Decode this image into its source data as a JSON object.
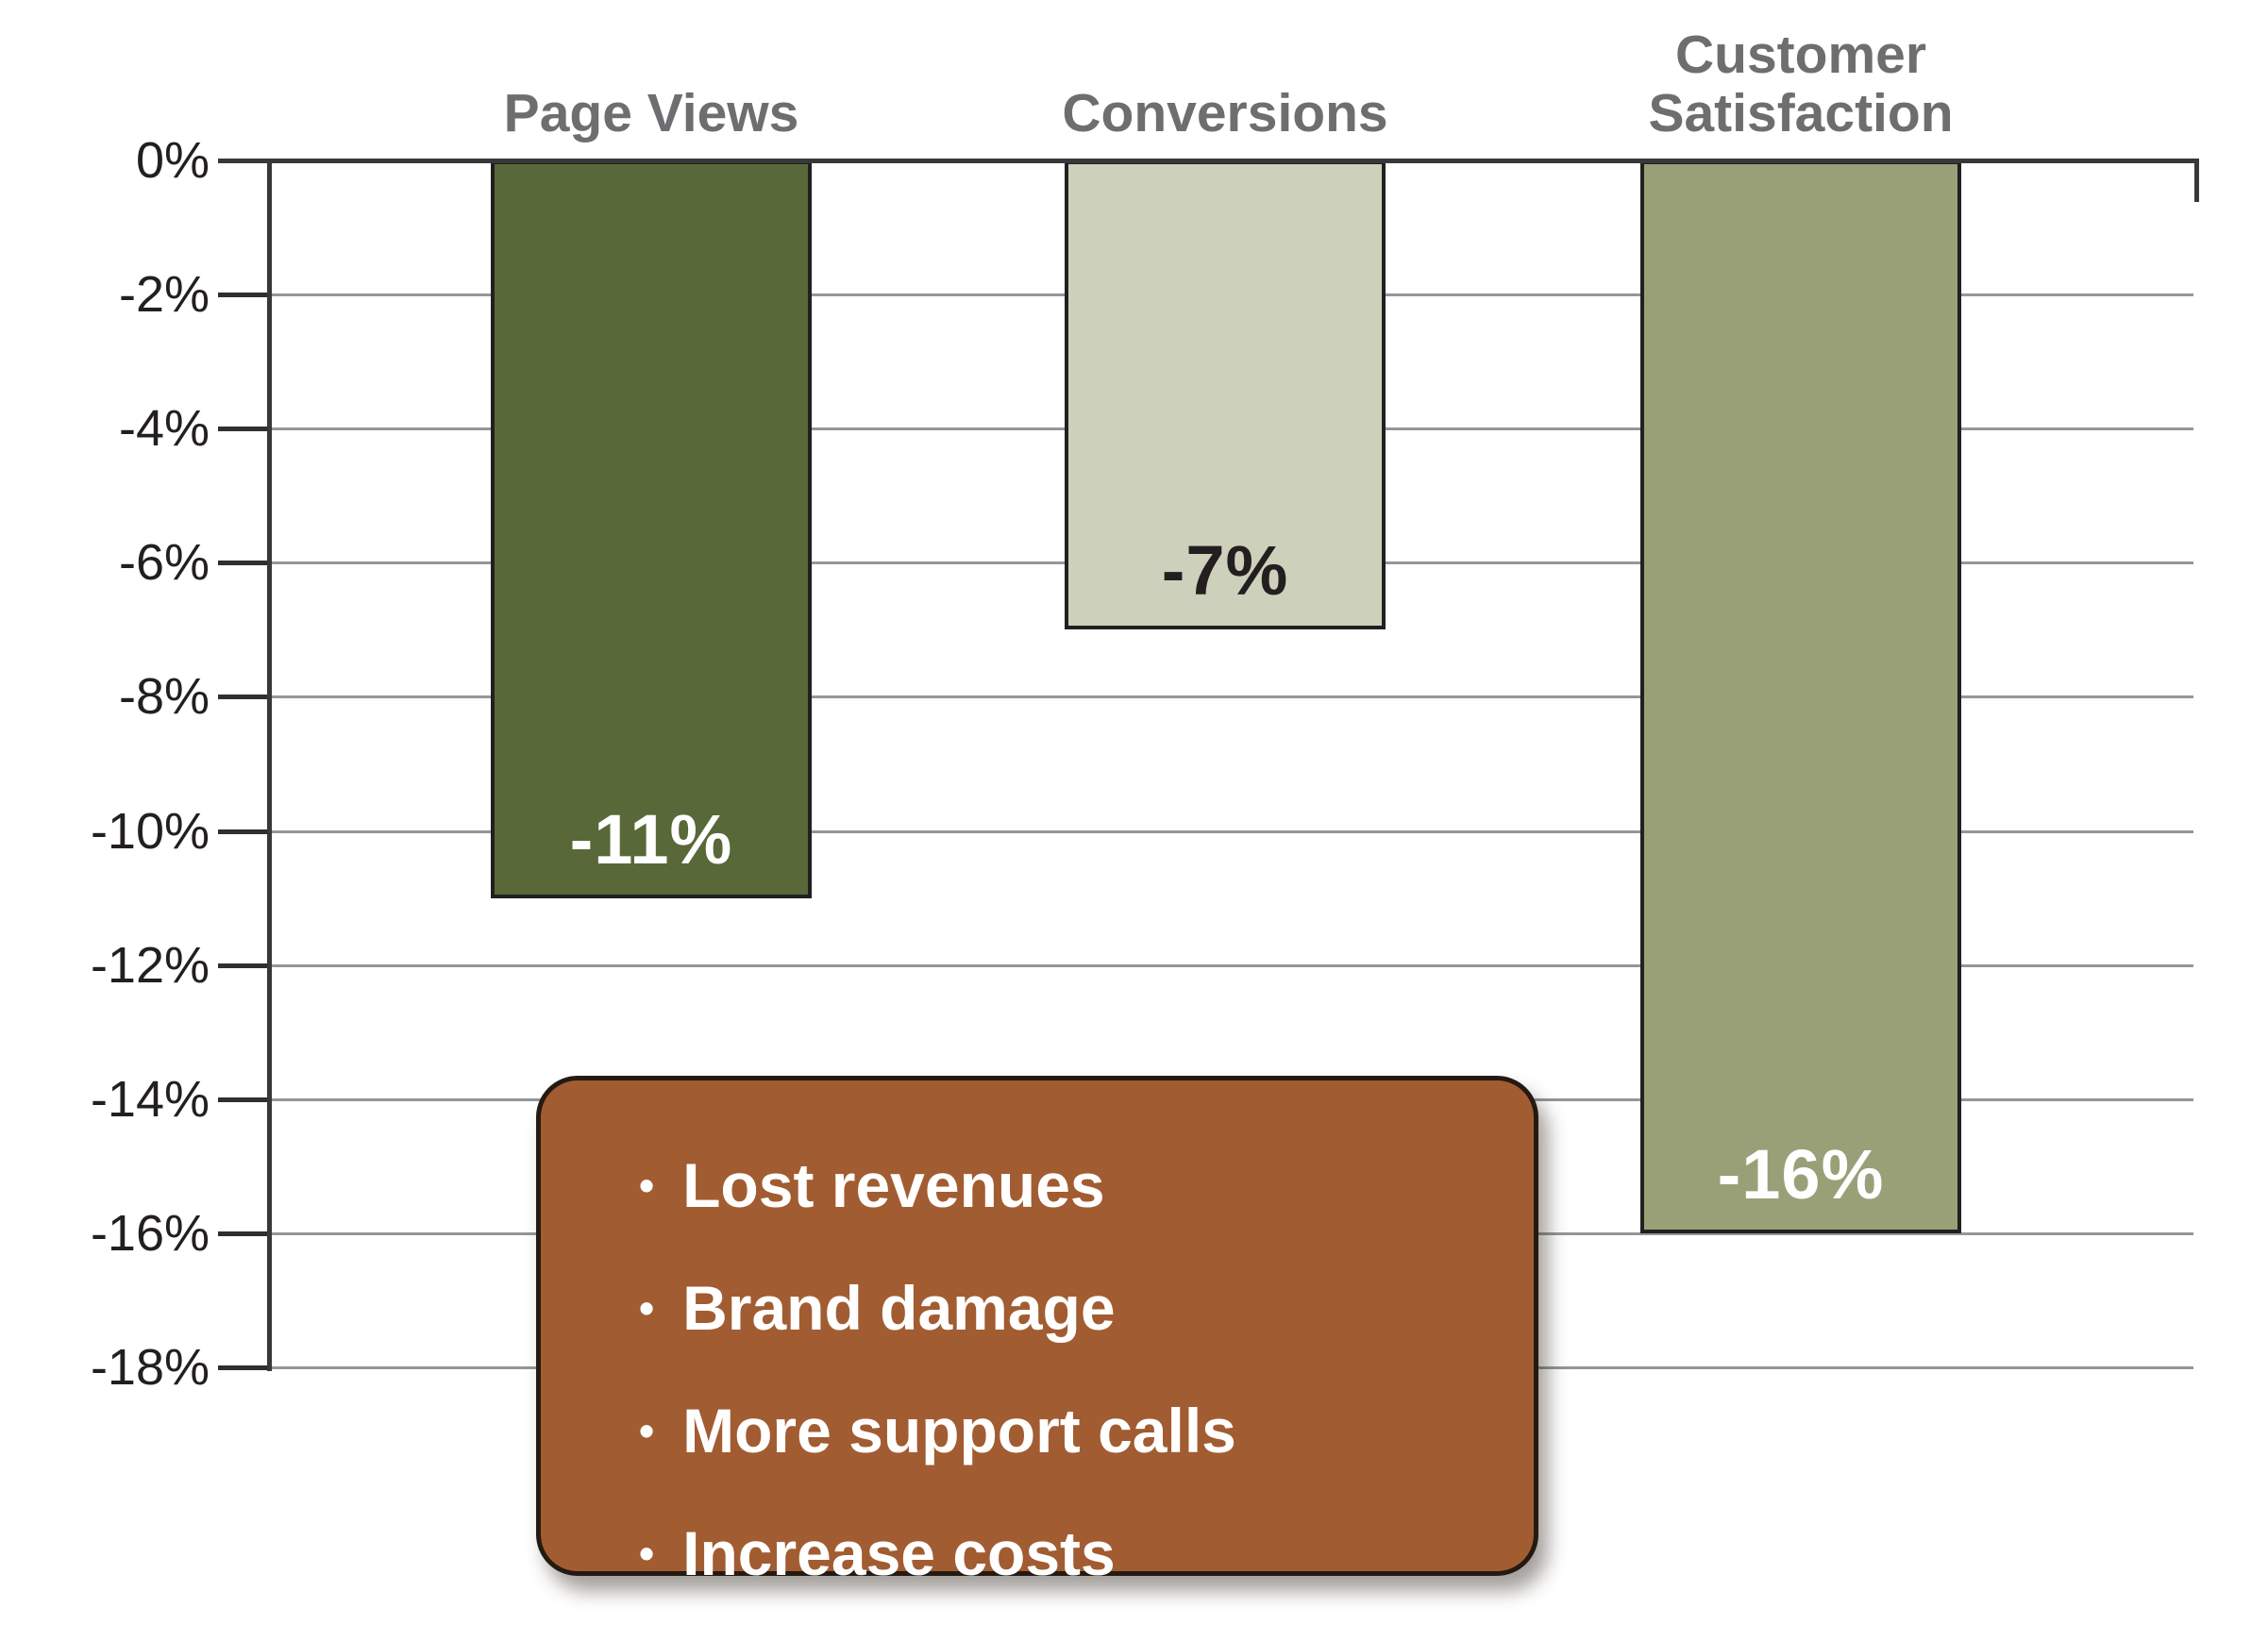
{
  "chart_data": {
    "type": "bar",
    "categories": [
      "Page Views",
      "Conversions",
      "Customer Satisfaction"
    ],
    "values": [
      -11,
      -7,
      -16
    ],
    "value_labels": [
      "-11%",
      "-7%",
      "-16%"
    ],
    "y_ticks": [
      "0%",
      "-2%",
      "-4%",
      "-6%",
      "-8%",
      "-10%",
      "-12%",
      "-14%",
      "-16%",
      "-18%"
    ],
    "ylim": [
      -18,
      0
    ],
    "grid": true,
    "legend_position": "none",
    "title": "",
    "xlabel": "",
    "ylabel": "",
    "bar_colors": [
      "#586838",
      "#cdd0ba",
      "#99a078"
    ],
    "value_label_colors": [
      "#ffffff",
      "#231f20",
      "#ffffff"
    ],
    "title_color": "#6d6e70",
    "axis_color": "#38383a",
    "gridline_color": "#949699"
  },
  "callout": {
    "bullet_glyph": "•",
    "items": [
      "Lost revenues",
      "Brand damage",
      "More support calls",
      "Increase costs"
    ],
    "background_color": "#a25c31",
    "text_color": "#ffffff"
  }
}
